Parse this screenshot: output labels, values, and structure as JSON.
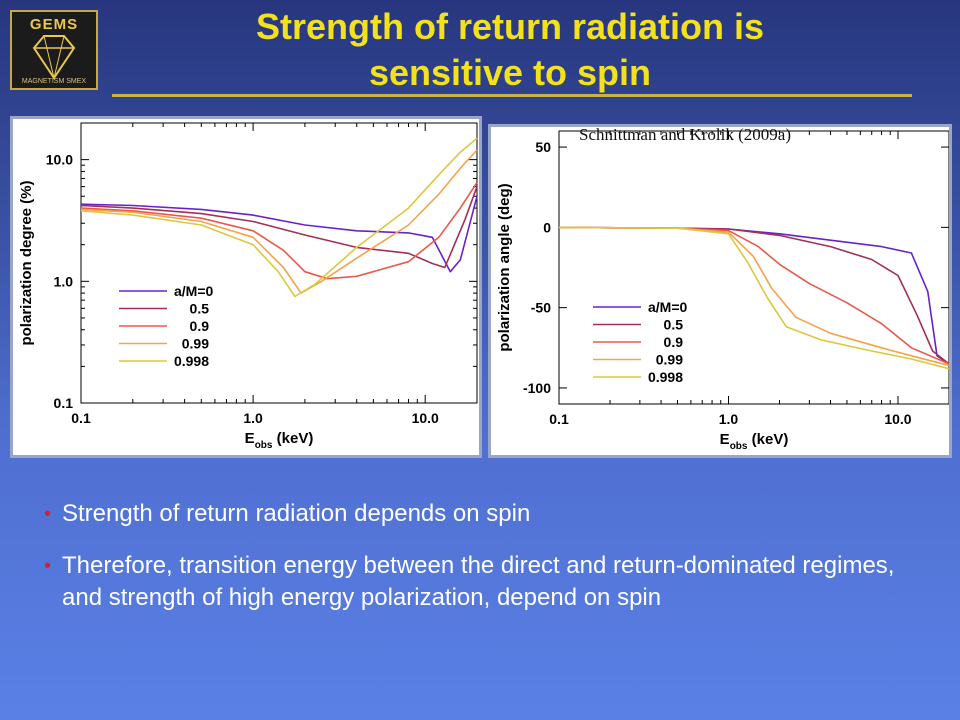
{
  "slide": {
    "title_line1": "Strength of return radiation is",
    "title_line2": "sensitive to spin",
    "logo_text": "GEMS",
    "logo_sub": "MAGNETISM SMEX",
    "citation": "Schnittman and Krolik (2009a)",
    "bullets": [
      "Strength of return radiation depends on spin",
      "Therefore, transition energy between the direct and return-dominated regimes,  and strength of high energy polarization, depend on spin"
    ]
  },
  "chart_data": [
    {
      "type": "line",
      "xlabel": "E",
      "xlabel_sub": "obs",
      "xlabel_unit": "(keV)",
      "ylabel": "polarization degree (%)",
      "xscale": "log",
      "yscale": "log",
      "xlim": [
        0.1,
        20
      ],
      "ylim": [
        0.1,
        20
      ],
      "xticks": [
        0.1,
        1.0,
        10.0
      ],
      "xtick_labels": [
        "0.1",
        "1.0",
        "10.0"
      ],
      "yticks": [
        0.1,
        1.0,
        10.0
      ],
      "ytick_labels": [
        "0.1",
        "1.0",
        "10.0"
      ],
      "legend_position": "lower-left",
      "series": [
        {
          "name": "a/M=0",
          "color": "#6a22c8",
          "x": [
            0.1,
            0.2,
            0.5,
            1.0,
            2.0,
            4.0,
            8.0,
            11,
            14,
            16,
            20
          ],
          "y": [
            4.3,
            4.2,
            3.9,
            3.5,
            2.9,
            2.6,
            2.5,
            2.3,
            1.2,
            1.5,
            5.0
          ]
        },
        {
          "name": "0.5",
          "color": "#a03058",
          "x": [
            0.1,
            0.2,
            0.5,
            1.0,
            2.0,
            4.0,
            8.0,
            11,
            13,
            17,
            20
          ],
          "y": [
            4.2,
            4.0,
            3.6,
            3.1,
            2.4,
            1.9,
            1.7,
            1.4,
            1.3,
            3.2,
            6.0
          ]
        },
        {
          "name": "0.9",
          "color": "#e85a4a",
          "x": [
            0.1,
            0.2,
            0.5,
            1.0,
            1.5,
            2.0,
            2.7,
            4.0,
            8.0,
            12,
            16,
            20
          ],
          "y": [
            4.0,
            3.8,
            3.3,
            2.6,
            1.8,
            1.2,
            1.05,
            1.1,
            1.45,
            2.3,
            4.0,
            6.5
          ]
        },
        {
          "name": "0.99",
          "color": "#f6a24a",
          "x": [
            0.1,
            0.2,
            0.5,
            1.0,
            1.5,
            1.9,
            2.5,
            4.0,
            8.0,
            12,
            16,
            20
          ],
          "y": [
            3.9,
            3.7,
            3.1,
            2.3,
            1.3,
            0.8,
            1.0,
            1.55,
            2.9,
            5.2,
            8.5,
            12
          ]
        },
        {
          "name": "0.998",
          "color": "#dcc840",
          "x": [
            0.1,
            0.2,
            0.5,
            1.0,
            1.4,
            1.75,
            2.3,
            4.0,
            8.0,
            12,
            16,
            20
          ],
          "y": [
            3.8,
            3.5,
            2.9,
            2.0,
            1.2,
            0.75,
            0.95,
            1.9,
            4.0,
            7.5,
            11.5,
            15
          ]
        }
      ]
    },
    {
      "type": "line",
      "xlabel": "E",
      "xlabel_sub": "obs",
      "xlabel_unit": "(keV)",
      "ylabel": "polarization angle (deg)",
      "xscale": "log",
      "yscale": "linear",
      "xlim": [
        0.1,
        20
      ],
      "ylim": [
        -110,
        60
      ],
      "xticks": [
        0.1,
        1.0,
        10.0
      ],
      "xtick_labels": [
        "0.1",
        "1.0",
        "10.0"
      ],
      "yticks": [
        50,
        0,
        -50,
        -100
      ],
      "ytick_labels": [
        "50",
        "0",
        "-50",
        "-100"
      ],
      "legend_position": "lower-left",
      "series": [
        {
          "name": "a/M=0",
          "color": "#6a22c8",
          "x": [
            0.1,
            0.5,
            1.0,
            2.0,
            4.0,
            8.0,
            12,
            15,
            17,
            20
          ],
          "y": [
            0,
            -0.5,
            -1,
            -4,
            -8,
            -12,
            -16,
            -40,
            -80,
            -85
          ]
        },
        {
          "name": "0.5",
          "color": "#a03058",
          "x": [
            0.1,
            0.5,
            1.0,
            2.0,
            4.0,
            7.0,
            10,
            13,
            16,
            20
          ],
          "y": [
            0,
            -0.5,
            -1,
            -5,
            -12,
            -20,
            -30,
            -55,
            -77,
            -85
          ]
        },
        {
          "name": "0.9",
          "color": "#e85a4a",
          "x": [
            0.1,
            0.5,
            1.0,
            1.5,
            2.0,
            3.0,
            5.0,
            8.0,
            12,
            20
          ],
          "y": [
            0,
            -0.5,
            -2,
            -12,
            -23,
            -35,
            -47,
            -60,
            -75,
            -85
          ]
        },
        {
          "name": "0.99",
          "color": "#f6a24a",
          "x": [
            0.1,
            0.5,
            1.0,
            1.4,
            1.8,
            2.5,
            4.0,
            8.0,
            12,
            20
          ],
          "y": [
            0,
            -0.5,
            -3,
            -18,
            -38,
            -56,
            -66,
            -75,
            -80,
            -86
          ]
        },
        {
          "name": "0.998",
          "color": "#dcc840",
          "x": [
            0.1,
            0.5,
            1.0,
            1.3,
            1.7,
            2.2,
            3.5,
            7.0,
            12,
            20
          ],
          "y": [
            0,
            -0.5,
            -4,
            -22,
            -44,
            -62,
            -70,
            -77,
            -82,
            -88
          ]
        }
      ]
    }
  ]
}
